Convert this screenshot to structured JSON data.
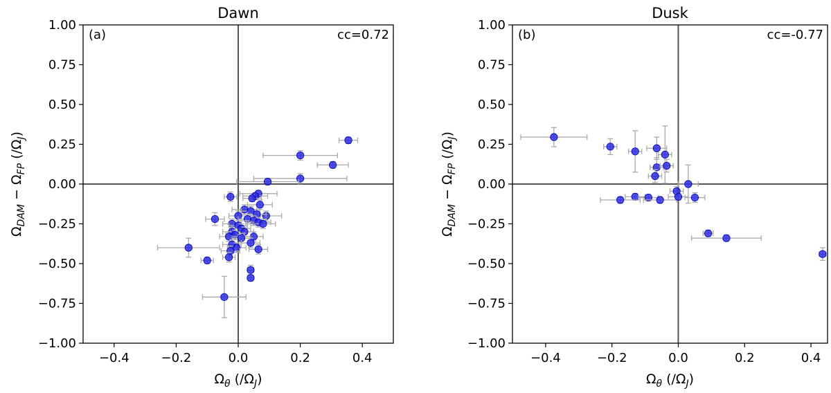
{
  "chart_data": [
    {
      "type": "scatter",
      "panel_label": "(a)",
      "title": "Dawn",
      "annotation": "cc=0.72",
      "xlabel": "Ω_θ (/Ω_J)",
      "ylabel": "Ω_DAM − Ω_FP (/Ω_J)",
      "xlim": [
        -0.5,
        0.5
      ],
      "ylim": [
        -1.0,
        1.0
      ],
      "xticks": [
        -0.4,
        -0.2,
        0.0,
        0.2,
        0.4
      ],
      "xtick_labels": [
        "−0.4",
        "−0.2",
        "0.0",
        "0.2",
        "0.4"
      ],
      "yticks": [
        -1.0,
        -0.75,
        -0.5,
        -0.25,
        0.0,
        0.25,
        0.5,
        0.75,
        1.0
      ],
      "ytick_labels": [
        "−1.00",
        "−0.75",
        "−0.50",
        "−0.25",
        "0.00",
        "0.25",
        "0.50",
        "0.75",
        "1.00"
      ],
      "reference_lines": {
        "x": 0,
        "y": 0
      },
      "marker_color": "#1f1fe6",
      "errorbar_color": "#aaaaaa",
      "points": [
        {
          "x": 0.355,
          "y": 0.275,
          "xerr": 0.03,
          "yerr": 0.02
        },
        {
          "x": 0.2,
          "y": 0.18,
          "xerr": 0.12,
          "yerr": 0.03
        },
        {
          "x": 0.305,
          "y": 0.12,
          "xerr": 0.05,
          "yerr": 0.02
        },
        {
          "x": 0.2,
          "y": 0.035,
          "xerr": 0.15,
          "yerr": 0.03
        },
        {
          "x": 0.095,
          "y": 0.015,
          "xerr": 0.1,
          "yerr": 0.02
        },
        {
          "x": 0.065,
          "y": -0.06,
          "xerr": 0.06,
          "yerr": 0.02
        },
        {
          "x": 0.055,
          "y": -0.075,
          "xerr": 0.04,
          "yerr": 0.02
        },
        {
          "x": 0.045,
          "y": -0.09,
          "xerr": 0.03,
          "yerr": 0.02
        },
        {
          "x": -0.025,
          "y": -0.08,
          "xerr": 0.02,
          "yerr": 0.03
        },
        {
          "x": 0.07,
          "y": -0.13,
          "xerr": 0.04,
          "yerr": 0.03
        },
        {
          "x": 0.02,
          "y": -0.16,
          "xerr": 0.04,
          "yerr": 0.03
        },
        {
          "x": 0.04,
          "y": -0.17,
          "xerr": 0.03,
          "yerr": 0.03
        },
        {
          "x": 0.09,
          "y": -0.2,
          "xerr": 0.05,
          "yerr": 0.03
        },
        {
          "x": 0.06,
          "y": -0.19,
          "xerr": 0.03,
          "yerr": 0.03
        },
        {
          "x": -0.075,
          "y": -0.22,
          "xerr": 0.03,
          "yerr": 0.04
        },
        {
          "x": 0.0,
          "y": -0.2,
          "xerr": 0.03,
          "yerr": 0.03
        },
        {
          "x": 0.03,
          "y": -0.22,
          "xerr": 0.03,
          "yerr": 0.03
        },
        {
          "x": 0.05,
          "y": -0.23,
          "xerr": 0.04,
          "yerr": 0.03
        },
        {
          "x": 0.065,
          "y": -0.24,
          "xerr": 0.04,
          "yerr": 0.03
        },
        {
          "x": 0.08,
          "y": -0.25,
          "xerr": 0.04,
          "yerr": 0.03
        },
        {
          "x": -0.02,
          "y": -0.25,
          "xerr": 0.03,
          "yerr": 0.03
        },
        {
          "x": 0.0,
          "y": -0.26,
          "xerr": 0.03,
          "yerr": 0.03
        },
        {
          "x": 0.01,
          "y": -0.28,
          "xerr": 0.03,
          "yerr": 0.03
        },
        {
          "x": -0.02,
          "y": -0.3,
          "xerr": 0.03,
          "yerr": 0.03
        },
        {
          "x": 0.02,
          "y": -0.3,
          "xerr": 0.03,
          "yerr": 0.03
        },
        {
          "x": -0.01,
          "y": -0.32,
          "xerr": 0.03,
          "yerr": 0.03
        },
        {
          "x": 0.05,
          "y": -0.33,
          "xerr": 0.03,
          "yerr": 0.03
        },
        {
          "x": -0.03,
          "y": -0.33,
          "xerr": 0.03,
          "yerr": 0.03
        },
        {
          "x": 0.01,
          "y": -0.34,
          "xerr": 0.03,
          "yerr": 0.03
        },
        {
          "x": 0.04,
          "y": -0.37,
          "xerr": 0.03,
          "yerr": 0.03
        },
        {
          "x": -0.02,
          "y": -0.38,
          "xerr": 0.03,
          "yerr": 0.03
        },
        {
          "x": -0.005,
          "y": -0.4,
          "xerr": 0.03,
          "yerr": 0.03
        },
        {
          "x": 0.065,
          "y": -0.41,
          "xerr": 0.03,
          "yerr": 0.03
        },
        {
          "x": -0.16,
          "y": -0.4,
          "xerr": 0.1,
          "yerr": 0.06
        },
        {
          "x": -0.025,
          "y": -0.42,
          "xerr": 0.03,
          "yerr": 0.03
        },
        {
          "x": -0.03,
          "y": -0.46,
          "xerr": 0.02,
          "yerr": 0.03
        },
        {
          "x": -0.1,
          "y": -0.48,
          "xerr": 0.02,
          "yerr": 0.02
        },
        {
          "x": 0.04,
          "y": -0.54,
          "xerr": 0.01,
          "yerr": 0.03
        },
        {
          "x": 0.04,
          "y": -0.59,
          "xerr": 0.01,
          "yerr": 0.02
        },
        {
          "x": -0.045,
          "y": -0.71,
          "xerr": 0.07,
          "yerr": 0.13
        }
      ]
    },
    {
      "type": "scatter",
      "panel_label": "(b)",
      "title": "Dusk",
      "annotation": "cc=-0.77",
      "xlabel": "Ω_θ (/Ω_J)",
      "ylabel": "Ω_DAM − Ω_FP (/Ω_J)",
      "xlim": [
        -0.5,
        0.45
      ],
      "ylim": [
        -1.0,
        1.0
      ],
      "xticks": [
        -0.4,
        -0.2,
        0.0,
        0.2,
        0.4
      ],
      "xtick_labels": [
        "−0.4",
        "−0.2",
        "0.0",
        "0.2",
        "0.4"
      ],
      "yticks": [
        -1.0,
        -0.75,
        -0.5,
        -0.25,
        0.0,
        0.25,
        0.5,
        0.75,
        1.0
      ],
      "ytick_labels": [
        "−1.00",
        "−0.75",
        "−0.50",
        "−0.25",
        "0.00",
        "0.25",
        "0.50",
        "0.75",
        "1.00"
      ],
      "reference_lines": {
        "x": 0,
        "y": 0
      },
      "marker_color": "#1f1fe6",
      "errorbar_color": "#aaaaaa",
      "points": [
        {
          "x": -0.375,
          "y": 0.295,
          "xerr": 0.1,
          "yerr": 0.06
        },
        {
          "x": -0.205,
          "y": 0.235,
          "xerr": 0.02,
          "yerr": 0.05
        },
        {
          "x": -0.13,
          "y": 0.205,
          "xerr": 0.02,
          "yerr": 0.13
        },
        {
          "x": -0.065,
          "y": 0.225,
          "xerr": 0.03,
          "yerr": 0.07
        },
        {
          "x": -0.04,
          "y": 0.185,
          "xerr": 0.02,
          "yerr": 0.18
        },
        {
          "x": -0.065,
          "y": 0.105,
          "xerr": 0.02,
          "yerr": 0.06
        },
        {
          "x": -0.035,
          "y": 0.115,
          "xerr": 0.02,
          "yerr": 0.04
        },
        {
          "x": -0.07,
          "y": 0.05,
          "xerr": 0.02,
          "yerr": 0.04
        },
        {
          "x": 0.03,
          "y": 0.0,
          "xerr": 0.03,
          "yerr": 0.12
        },
        {
          "x": -0.005,
          "y": -0.045,
          "xerr": 0.02,
          "yerr": 0.03
        },
        {
          "x": -0.13,
          "y": -0.08,
          "xerr": 0.03,
          "yerr": 0.02
        },
        {
          "x": -0.175,
          "y": -0.1,
          "xerr": 0.06,
          "yerr": 0.02
        },
        {
          "x": -0.09,
          "y": -0.085,
          "xerr": 0.03,
          "yerr": 0.02
        },
        {
          "x": -0.055,
          "y": -0.1,
          "xerr": 0.05,
          "yerr": 0.02
        },
        {
          "x": 0.0,
          "y": -0.08,
          "xerr": 0.03,
          "yerr": 0.02
        },
        {
          "x": 0.05,
          "y": -0.085,
          "xerr": 0.03,
          "yerr": 0.03
        },
        {
          "x": 0.09,
          "y": -0.31,
          "xerr": 0.015,
          "yerr": 0.02
        },
        {
          "x": 0.145,
          "y": -0.34,
          "xerr": 0.105,
          "yerr": 0.02
        },
        {
          "x": 0.435,
          "y": -0.44,
          "xerr": 0.01,
          "yerr": 0.04
        }
      ]
    }
  ]
}
